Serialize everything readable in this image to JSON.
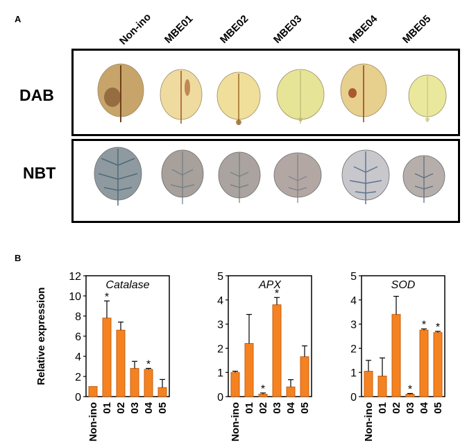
{
  "panel_a": {
    "label": "A",
    "columns": [
      "Non-ino",
      "MBE01",
      "MBE02",
      "MBE03",
      "MBE04",
      "MBE05"
    ],
    "rows": [
      "DAB",
      "NBT"
    ],
    "colors": {
      "dab_fill": [
        "#c7a46a",
        "#efdba0",
        "#efdf9a",
        "#e6e497",
        "#e7cf8e",
        "#e9e89c"
      ],
      "dab_stain": [
        "#6e3f1e",
        "#a0521f",
        "#9a6a2a",
        "#b9b875",
        "#9a3b16",
        "#c6c681"
      ],
      "nbt_fill": [
        "#8e9aa0",
        "#a7a09b",
        "#aaa39f",
        "#b3a7a3",
        "#c7c7cc",
        "#b6aeaa"
      ],
      "nbt_vein": [
        "#4f6a78",
        "#6f7c85",
        "#6e8072",
        "#7a7f8e",
        "#5e7390",
        "#5e6e80"
      ]
    }
  },
  "panel_b": {
    "label": "B",
    "y_axis_title": "Relative expression",
    "bar_color": "#f58220",
    "bar_edge": "#c85f10"
  },
  "chart_data": [
    {
      "type": "bar",
      "title": "Catalase",
      "categories": [
        "Non-ino",
        "01",
        "02",
        "03",
        "04",
        "05"
      ],
      "values": [
        1.0,
        7.8,
        6.6,
        2.8,
        2.7,
        0.9
      ],
      "errors": [
        0.0,
        1.7,
        0.8,
        0.7,
        0.1,
        0.8
      ],
      "significant": [
        false,
        true,
        false,
        false,
        true,
        false
      ],
      "ylim": [
        0,
        12
      ],
      "yticks": [
        "0",
        "2",
        "4",
        "6",
        "8",
        "10",
        "12"
      ],
      "ylabel": "Relative expression"
    },
    {
      "type": "bar",
      "title": "APX",
      "categories": [
        "Non-ino",
        "01",
        "02",
        "03",
        "04",
        "05"
      ],
      "values": [
        1.0,
        2.2,
        0.1,
        3.8,
        0.4,
        1.65
      ],
      "errors": [
        0.05,
        1.2,
        0.05,
        0.3,
        0.3,
        0.45
      ],
      "significant": [
        false,
        false,
        true,
        true,
        false,
        false
      ],
      "ylim": [
        0,
        5
      ],
      "yticks": [
        "0",
        "1",
        "2",
        "3",
        "4",
        "5"
      ],
      "ylabel": ""
    },
    {
      "type": "bar",
      "title": "SOD",
      "categories": [
        "Non-ino",
        "01",
        "02",
        "03",
        "04",
        "05"
      ],
      "values": [
        1.05,
        0.85,
        3.4,
        0.1,
        2.75,
        2.65
      ],
      "errors": [
        0.45,
        0.75,
        0.75,
        0.03,
        0.05,
        0.05
      ],
      "significant": [
        false,
        false,
        false,
        true,
        true,
        true
      ],
      "ylim": [
        0,
        5
      ],
      "yticks": [
        "0",
        "1",
        "2",
        "3",
        "4",
        "5"
      ],
      "ylabel": ""
    }
  ]
}
